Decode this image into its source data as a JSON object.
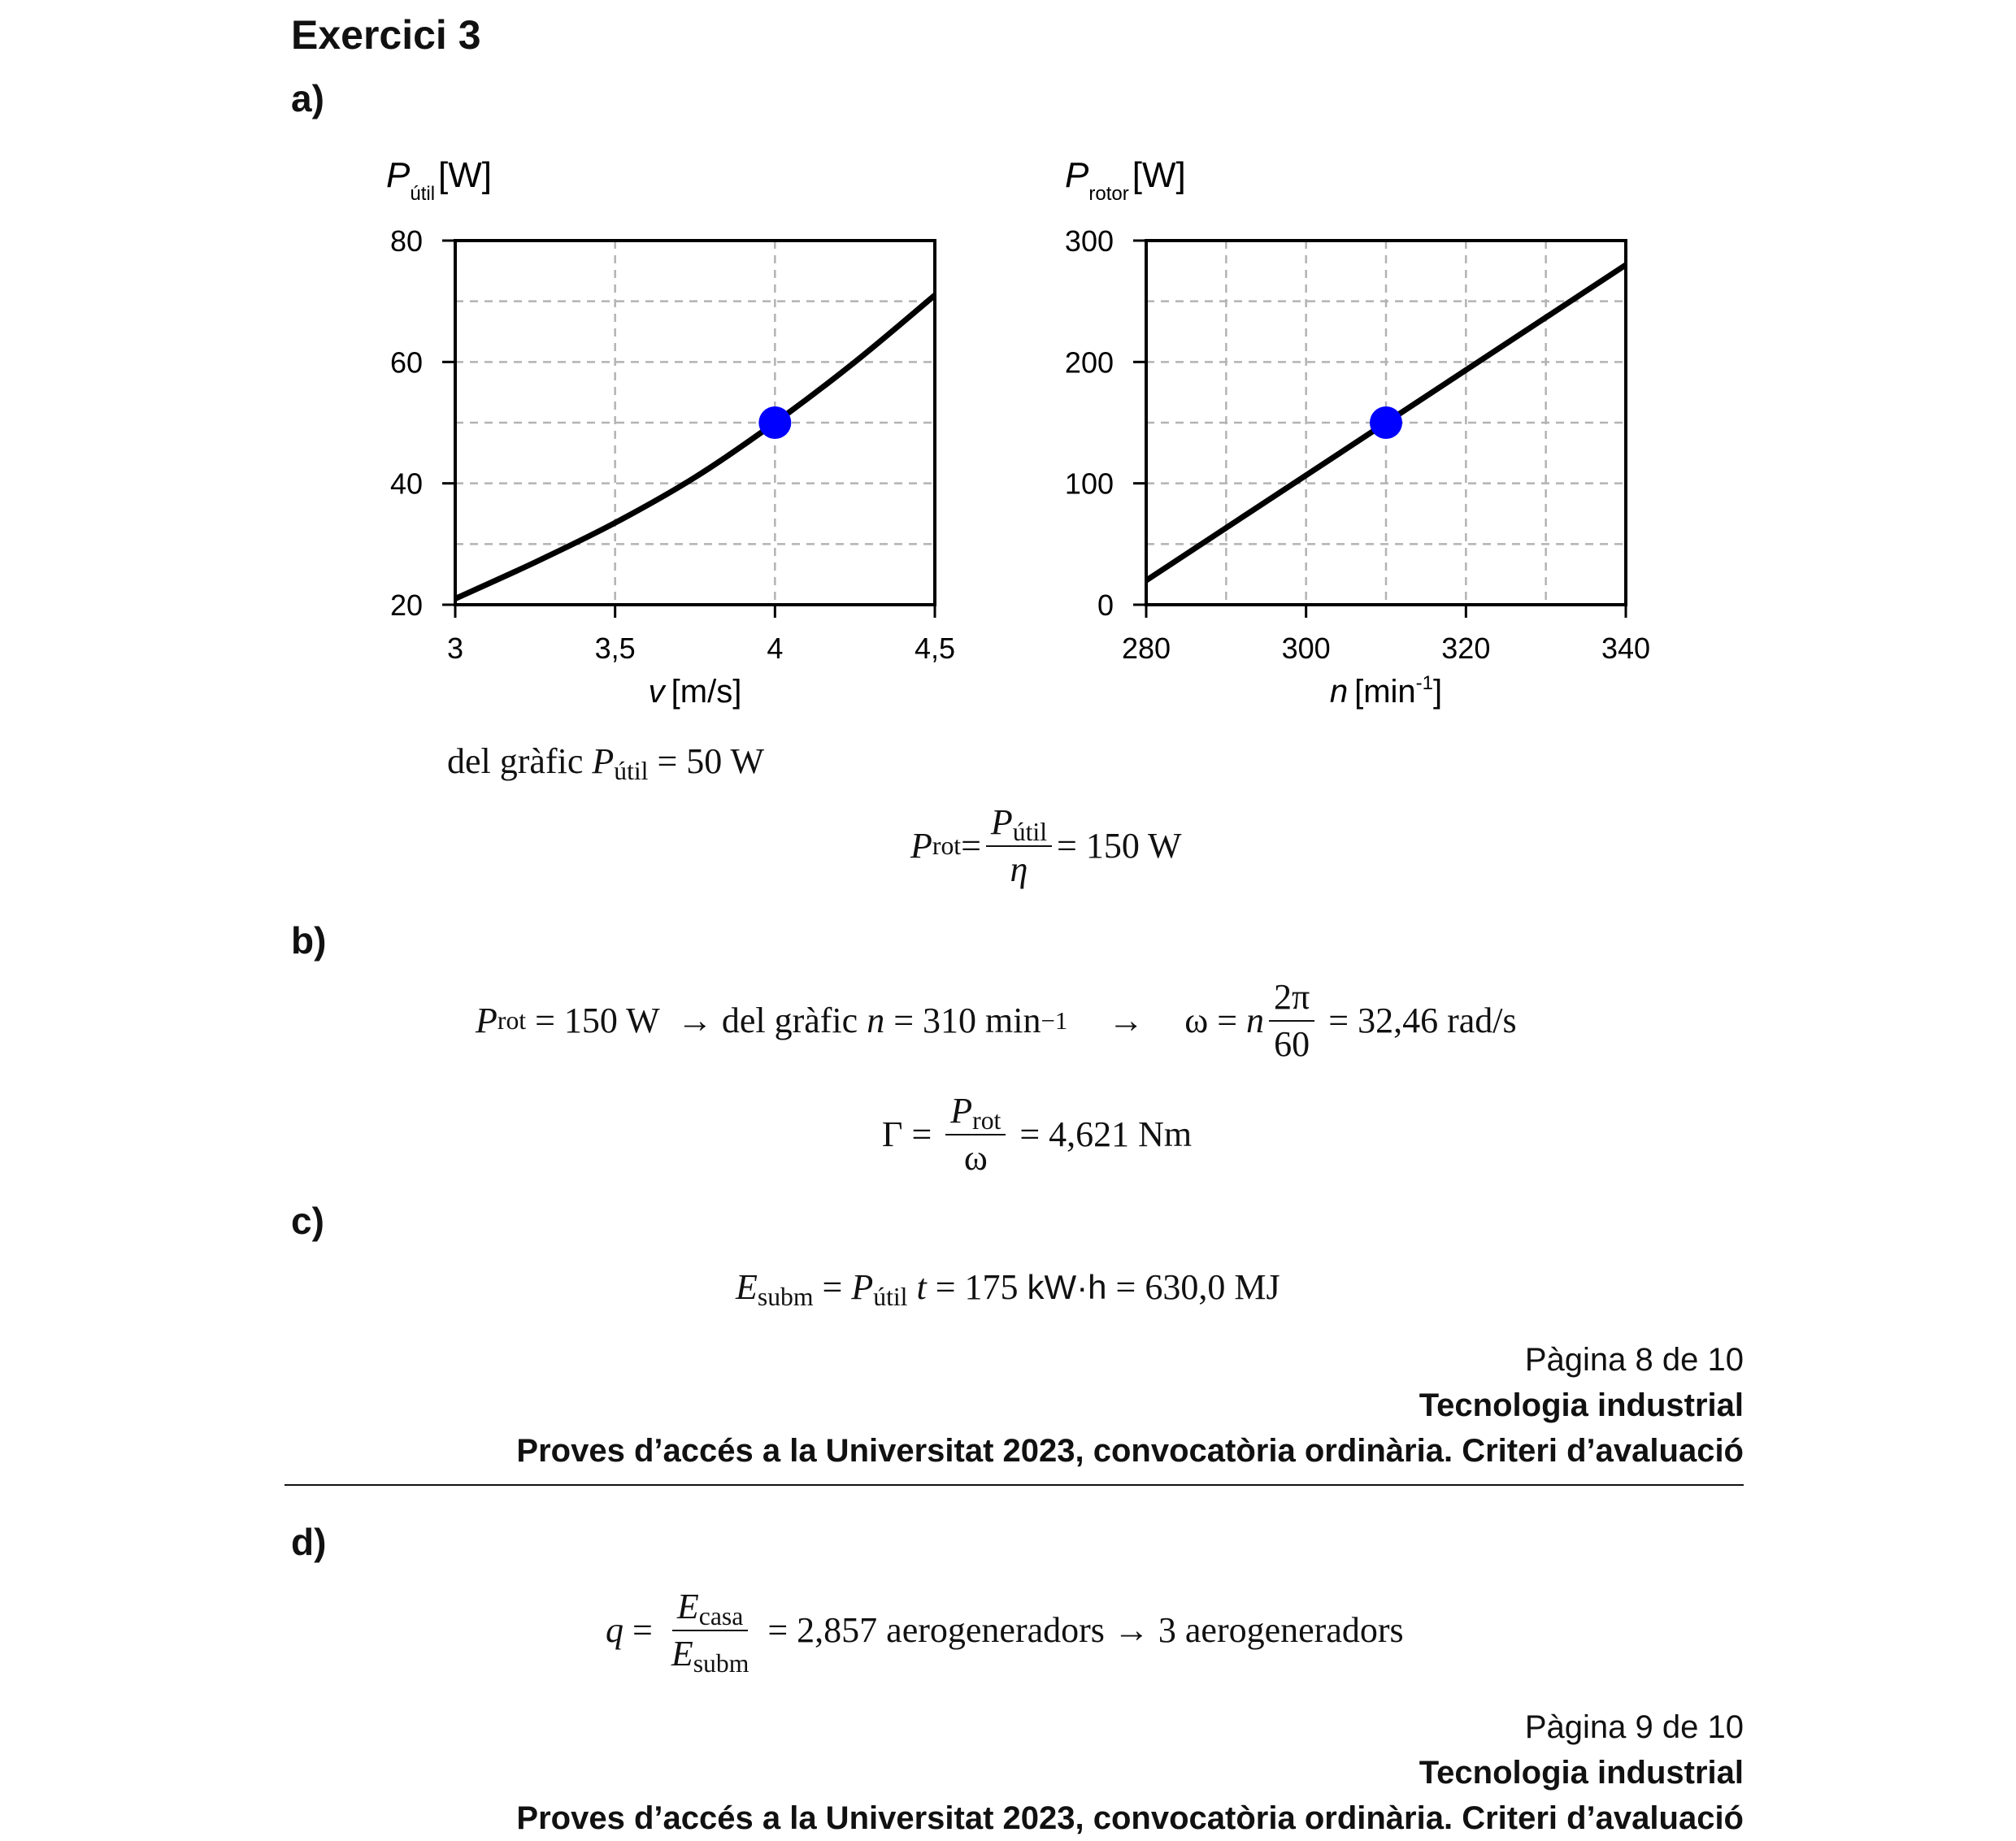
{
  "title": "Exercici 3",
  "parts": {
    "a": "a)",
    "b": "b)",
    "c": "c)",
    "d": "d)"
  },
  "chart_data": [
    {
      "type": "line",
      "ylabel_sym": "P",
      "ylabel_sub": "útil",
      "ylabel_unit": "[W]",
      "xlabel_sym": "v",
      "xlabel_unit": "[m/s]",
      "xlim": [
        3,
        4.5
      ],
      "ylim": [
        20,
        80
      ],
      "xticks": [
        3,
        3.5,
        4,
        4.5
      ],
      "xtick_labels": [
        "3",
        "3,5",
        "4",
        "4,5"
      ],
      "yticks": [
        20,
        40,
        60,
        80
      ],
      "ytick_labels": [
        "20",
        "40",
        "60",
        "80"
      ],
      "x_grid": [
        3.5,
        4
      ],
      "y_grid": [
        30,
        40,
        50,
        60,
        70
      ],
      "grid": true,
      "series": [
        {
          "x": [
            3,
            3.25,
            3.5,
            3.75,
            4,
            4.25,
            4.5
          ],
          "y": [
            21,
            27,
            33.5,
            41,
            50,
            60,
            71
          ]
        }
      ],
      "highlight": {
        "x": 4,
        "y": 50
      },
      "line_color": "#000000",
      "marker_color": "#0000ff"
    },
    {
      "type": "line",
      "ylabel_sym": "P",
      "ylabel_sub": "rotor",
      "ylabel_unit": "[W]",
      "xlabel_sym": "n",
      "xlabel_unit": "[min",
      "xlabel_sup": "-1",
      "xlabel_close": "]",
      "xlim": [
        280,
        340
      ],
      "ylim": [
        0,
        300
      ],
      "xticks": [
        280,
        300,
        320,
        340
      ],
      "xtick_labels": [
        "280",
        "300",
        "320",
        "340"
      ],
      "yticks": [
        0,
        100,
        200,
        300
      ],
      "ytick_labels": [
        "0",
        "100",
        "200",
        "300"
      ],
      "x_grid": [
        290,
        300,
        310,
        320,
        330
      ],
      "y_grid": [
        50,
        100,
        150,
        200,
        250
      ],
      "grid": true,
      "series": [
        {
          "x": [
            280,
            340
          ],
          "y": [
            20,
            280
          ]
        }
      ],
      "highlight": {
        "x": 310,
        "y": 150
      },
      "line_color": "#000000",
      "marker_color": "#0000ff"
    }
  ],
  "eq_a1": {
    "pre": "del gràfic ",
    "P": "P",
    "sub": "útil",
    "rhs": " = 50 W"
  },
  "eq_a2": {
    "P": "P",
    "sub": "rot",
    "eq": " = ",
    "num_P": "P",
    "num_sub": "útil",
    "den": "η",
    "rhs": " = 150 W"
  },
  "eq_b1": {
    "P": "P",
    "sub": "rot",
    "part1": " = 150 W  → del gràfic ",
    "n": "n",
    "part2": " = 310 min",
    "sup": "−1",
    "arrow": "→",
    "omega": "ω",
    "eq": " = ",
    "n2": "n",
    "num": "2π",
    "den": "60",
    "rhs": " = 32,46 rad/s"
  },
  "eq_b2": {
    "gamma": "Γ",
    "eq": " = ",
    "num_P": "P",
    "num_sub": "rot",
    "den": "ω",
    "rhs": " = 4,621 Nm"
  },
  "eq_c": {
    "E": "E",
    "sub": "subm",
    "eq": " = ",
    "P": "P",
    "psub": "útil",
    "t": " t",
    "mid1": " = 175 ",
    "unit": "kW·h",
    "rhs": " = 630,0 MJ"
  },
  "eq_d": {
    "q": "q",
    "eq": " = ",
    "num_E": "E",
    "num_sub": "casa",
    "den_E": "E",
    "den_sub": "subm",
    "rhs": " = 2,857 aerogeneradors → 3 aerogeneradors"
  },
  "footers": [
    {
      "page": "Pàgina 8 de 10",
      "subject": "Tecnologia industrial",
      "exam": "Proves d’accés a la Universitat 2023, convocatòria ordinària. Criteri d’avaluació"
    },
    {
      "page": "Pàgina 9 de 10",
      "subject": "Tecnologia industrial",
      "exam": "Proves d’accés a la Universitat 2023, convocatòria ordinària. Criteri d’avaluació"
    }
  ]
}
